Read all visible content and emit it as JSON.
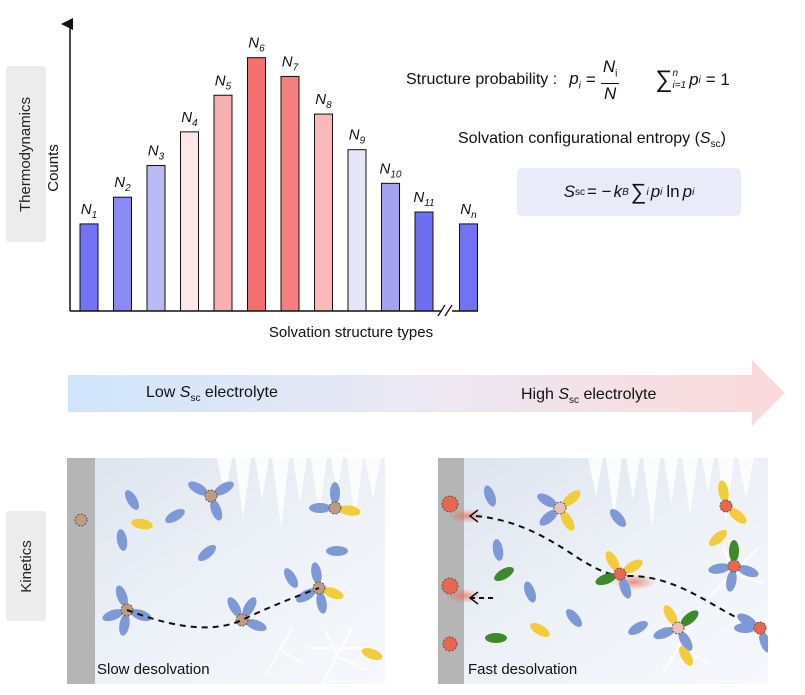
{
  "sections": {
    "top_label": "Thermodynamics",
    "bottom_label": "Kinetics"
  },
  "chart_data": {
    "type": "bar",
    "title": "",
    "xlabel": "Solvation structure types",
    "ylabel": "Counts",
    "categories": [
      "N1",
      "N2",
      "N3",
      "N4",
      "N5",
      "N6",
      "N7",
      "N8",
      "N9",
      "N10",
      "N11",
      "Nn"
    ],
    "category_main": [
      "N",
      "N",
      "N",
      "N",
      "N",
      "N",
      "N",
      "N",
      "N",
      "N",
      "N",
      "N"
    ],
    "category_sub": [
      "1",
      "2",
      "3",
      "4",
      "5",
      "6",
      "7",
      "8",
      "9",
      "10",
      "11",
      "n"
    ],
    "values": [
      88,
      115,
      147,
      181,
      218,
      256,
      237,
      199,
      163,
      129,
      100,
      88
    ],
    "colors": [
      "#7373f5",
      "#8a8af2",
      "#b9b9f3",
      "#fde7e7",
      "#f8b0b0",
      "#f46f6f",
      "#f57f7f",
      "#f9b9b9",
      "#e6e6f8",
      "#a3a3f1",
      "#6e6ef3",
      "#7272f5"
    ],
    "ylim": [
      0,
      290
    ],
    "axis_break_before_last": true,
    "grid": false,
    "legend": "none"
  },
  "equations": {
    "structure_probability_label": "Structure probability :",
    "p_i": "p",
    "p_sub": "i",
    "equals": "=",
    "frac_num_main": "N",
    "frac_num_sub": "i",
    "frac_den": "N",
    "sum_symbol": "∑",
    "sum_upper": "n",
    "sum_lower": "i=1",
    "sum_rhs": "= 1",
    "entropy_label_prefix": "Solvation configurational entropy (",
    "entropy_label_S": "S",
    "entropy_label_sub": "sc",
    "entropy_label_suffix": ")",
    "formula_S": "S",
    "formula_sub": "sc",
    "formula_eq": "= −",
    "formula_k": "k",
    "formula_k_sub": "B",
    "formula_sum": "∑",
    "formula_sum_sub": "i",
    "formula_p": "p",
    "formula_p_sub": "i",
    "formula_ln": "ln",
    "formula_p2": "p",
    "formula_p2_sub": "i"
  },
  "arrow": {
    "left_prefix": "Low ",
    "left_S": "S",
    "left_sub": "sc",
    "left_suffix": " electrolyte",
    "right_prefix": "High ",
    "right_S": "S",
    "right_sub": "sc",
    "right_suffix": " electrolyte",
    "start_color": "#cfe5fb",
    "end_color": "#fbd9d9"
  },
  "panels": {
    "left_caption": "Slow desolvation",
    "right_caption": "Fast desolvation",
    "solvent_blue": "#7f98d6",
    "anion_yellow": "#f2cc3a",
    "additive_green": "#3d8a2c",
    "ion_brown": "#c19a80",
    "ion_red": "#e8674e",
    "electrode": "#b5b5b5"
  }
}
